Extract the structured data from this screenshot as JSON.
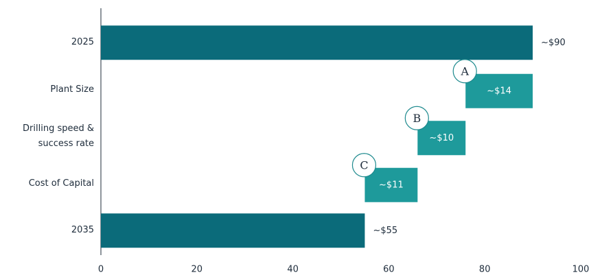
{
  "chart_data": {
    "type": "waterfall",
    "categories": [
      "2025",
      "Plant Size",
      "Drilling speed & success rate",
      "Cost of Capital",
      "2035"
    ],
    "measure": [
      "absolute",
      "relative",
      "relative",
      "relative",
      "absolute"
    ],
    "values": [
      90,
      -14,
      -10,
      -11,
      55
    ],
    "value_labels": [
      "~$90",
      "~$14",
      "~$10",
      "~$11",
      "~$55"
    ],
    "annotations": [
      null,
      "A",
      "B",
      "C",
      null
    ],
    "colors": {
      "absolute": "#0b6b7a",
      "relative": "#1e9a9b"
    },
    "xlim": [
      0,
      100
    ],
    "xticks": [
      0,
      20,
      40,
      60,
      80,
      100
    ]
  }
}
